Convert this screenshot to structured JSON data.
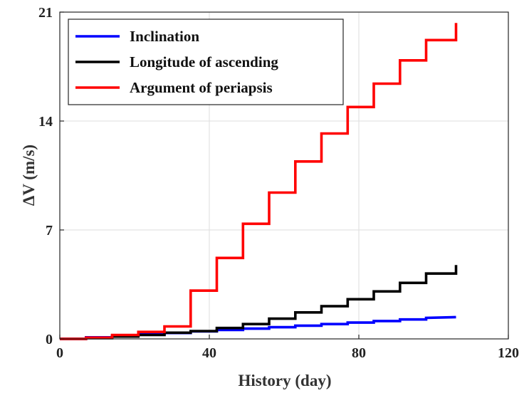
{
  "chart_data": {
    "type": "line",
    "step": true,
    "title": "",
    "xlabel": "History (day)",
    "ylabel": "ΔV (m/s)",
    "xlim": [
      0,
      120
    ],
    "ylim": [
      0,
      21
    ],
    "xticks": [
      "0",
      "40",
      "80",
      "120"
    ],
    "yticks": [
      "0",
      "7",
      "14",
      "21"
    ],
    "grid": true,
    "legend_position": "top-left",
    "series": [
      {
        "name": "Inclination",
        "color": "#0000ff",
        "x": [
          0,
          7,
          7,
          14,
          14,
          21,
          21,
          28,
          28,
          35,
          35,
          42,
          42,
          49,
          49,
          56,
          56,
          63,
          63,
          70,
          70,
          77,
          77,
          84,
          84,
          91,
          91,
          98,
          98,
          106
        ],
        "y": [
          0,
          0,
          0.1,
          0.1,
          0.2,
          0.2,
          0.3,
          0.3,
          0.38,
          0.38,
          0.48,
          0.48,
          0.57,
          0.57,
          0.66,
          0.66,
          0.75,
          0.75,
          0.85,
          0.85,
          0.95,
          0.95,
          1.05,
          1.05,
          1.15,
          1.15,
          1.25,
          1.25,
          1.35,
          1.4
        ]
      },
      {
        "name": "Longitude of ascending",
        "color": "#000000",
        "x": [
          0,
          7,
          7,
          14,
          14,
          21,
          21,
          28,
          28,
          35,
          35,
          42,
          42,
          49,
          49,
          56,
          56,
          63,
          63,
          70,
          70,
          77,
          77,
          84,
          84,
          91,
          91,
          98,
          98,
          106,
          106
        ],
        "y": [
          0,
          0,
          0.05,
          0.05,
          0.15,
          0.15,
          0.25,
          0.25,
          0.4,
          0.4,
          0.5,
          0.5,
          0.7,
          0.7,
          0.95,
          0.95,
          1.3,
          1.3,
          1.7,
          1.7,
          2.1,
          2.1,
          2.55,
          2.55,
          3.05,
          3.05,
          3.6,
          3.6,
          4.2,
          4.2,
          4.75
        ]
      },
      {
        "name": "Argument of periapsis",
        "color": "#ff0000",
        "x": [
          0,
          7,
          7,
          14,
          14,
          21,
          21,
          28,
          28,
          35,
          35,
          42,
          42,
          49,
          49,
          56,
          56,
          63,
          63,
          70,
          70,
          77,
          77,
          84,
          84,
          91,
          91,
          98,
          98,
          106,
          106
        ],
        "y": [
          0,
          0,
          0.08,
          0.08,
          0.25,
          0.25,
          0.45,
          0.45,
          0.8,
          0.8,
          3.1,
          3.1,
          5.2,
          5.2,
          7.4,
          7.4,
          9.4,
          9.4,
          11.4,
          11.4,
          13.2,
          13.2,
          14.9,
          14.9,
          16.4,
          16.4,
          17.9,
          17.9,
          19.2,
          19.2,
          20.3
        ]
      }
    ]
  }
}
